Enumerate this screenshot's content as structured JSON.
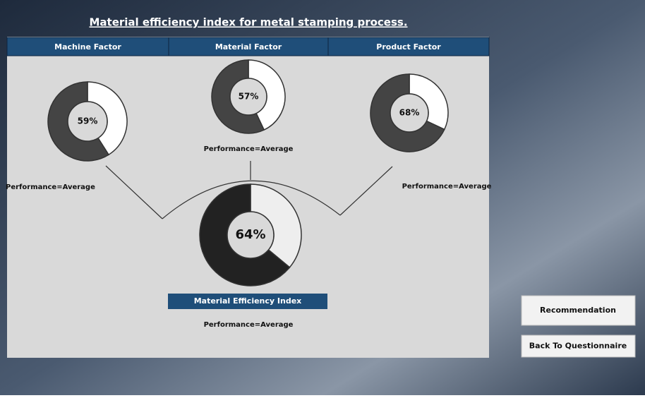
{
  "title": "Material efficiency index for metal stamping process.",
  "factors": [
    {
      "header": "Machine Factor",
      "value": 59,
      "value_label": "59%",
      "performance": "Performance=Average"
    },
    {
      "header": "Material Factor",
      "value": 57,
      "value_label": "57%",
      "performance": "Performance=Average"
    },
    {
      "header": "Product Factor",
      "value": 68,
      "value_label": "68%",
      "performance": "Performance=Average"
    }
  ],
  "index": {
    "label": "Material Efficiency Index",
    "value": 64,
    "value_label": "64%",
    "performance": "Performance=Average"
  },
  "buttons": [
    "Recommendation",
    "Back To Questionnaire"
  ]
}
